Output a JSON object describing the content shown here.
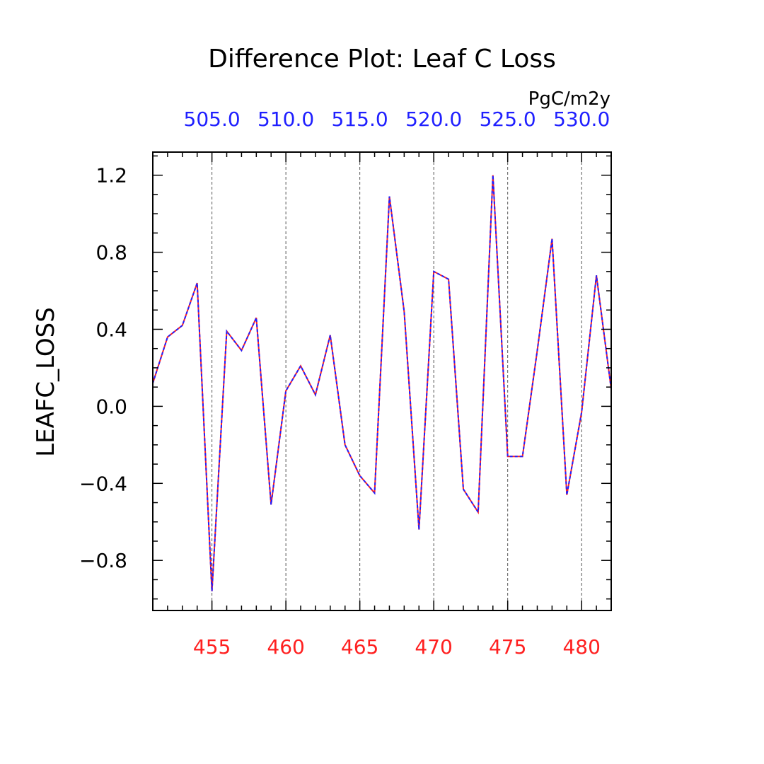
{
  "chart_data": {
    "type": "line",
    "title": "Difference Plot: Leaf C Loss",
    "units": "PgC/m2y",
    "ylabel": "LEAFC_LOSS",
    "ylim": [
      -1.06,
      1.32
    ],
    "y_ticks": [
      -0.8,
      -0.4,
      0.0,
      0.4,
      0.8,
      1.2
    ],
    "y_tick_labels": [
      "−0.8",
      "−0.4",
      "0.0",
      "0.4",
      "0.8",
      "1.2"
    ],
    "y_minor_step": 0.1,
    "bottom_axis": {
      "range": [
        451,
        482
      ],
      "ticks": [
        455,
        460,
        465,
        470,
        475,
        480
      ],
      "tick_labels": [
        "455",
        "460",
        "465",
        "470",
        "475",
        "480"
      ],
      "color": "#ff2020"
    },
    "top_axis": {
      "range": [
        501,
        532
      ],
      "ticks": [
        505,
        510,
        515,
        520,
        525,
        530
      ],
      "tick_labels": [
        "505.0",
        "510.0",
        "515.0",
        "520.0",
        "525.0",
        "530.0"
      ],
      "color": "#2020ff"
    },
    "grid": "vertical-dashed",
    "series": [
      {
        "color": "#ff2020",
        "dash": "solid",
        "x": [
          451,
          452,
          453,
          454,
          455,
          456,
          457,
          458,
          459,
          460,
          461,
          462,
          463,
          464,
          465,
          466,
          467,
          468,
          469,
          470,
          471,
          472,
          473,
          474,
          475,
          476,
          477,
          478,
          479,
          480,
          481,
          482
        ],
        "values": [
          0.12,
          0.36,
          0.42,
          0.64,
          -0.96,
          0.39,
          0.29,
          0.46,
          -0.51,
          0.08,
          0.21,
          0.06,
          0.37,
          -0.2,
          -0.36,
          -0.45,
          1.09,
          0.49,
          -0.64,
          0.7,
          0.66,
          -0.43,
          -0.55,
          1.2,
          -0.26,
          -0.26,
          0.29,
          0.87,
          -0.46,
          -0.03,
          0.68,
          0.09
        ]
      },
      {
        "color": "#2020ff",
        "dash": "dashed",
        "x": [
          501,
          502,
          503,
          504,
          505,
          506,
          507,
          508,
          509,
          510,
          511,
          512,
          513,
          514,
          515,
          516,
          517,
          518,
          519,
          520,
          521,
          522,
          523,
          524,
          525,
          526,
          527,
          528,
          529,
          530,
          531,
          532
        ],
        "values": [
          0.12,
          0.36,
          0.42,
          0.64,
          -0.96,
          0.39,
          0.29,
          0.46,
          -0.51,
          0.08,
          0.21,
          0.06,
          0.37,
          -0.2,
          -0.36,
          -0.45,
          1.09,
          0.49,
          -0.64,
          0.7,
          0.66,
          -0.43,
          -0.55,
          1.2,
          -0.26,
          -0.26,
          0.29,
          0.87,
          -0.46,
          -0.03,
          0.68,
          0.09
        ]
      }
    ]
  }
}
